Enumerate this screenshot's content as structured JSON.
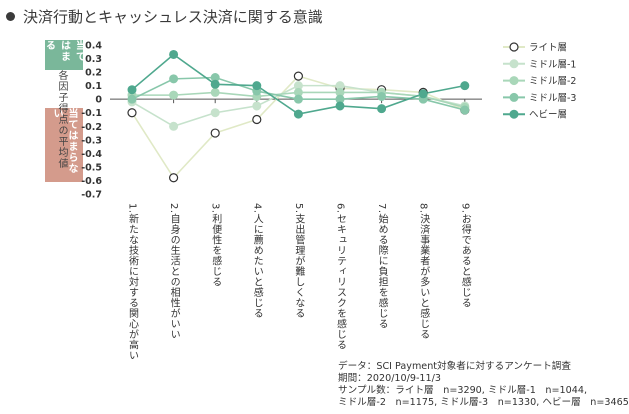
{
  "header": {
    "title": "決済行動とキャッシュレス決済に関する意識"
  },
  "y_axis_label": "各因子得点の平均値",
  "tags": {
    "agree": "当てはまる",
    "disagree": "当てはまらない"
  },
  "footer": {
    "line1": "データ：SCI Payment対象者に対するアンケート調査",
    "line2": "期間：2020/10/9-11/3",
    "line3": "サンプル数：ライト層　n=3290, ミドル層-1　n=1044,",
    "line4": "ミドル層-2　n=1175, ミドル層-3　n=1330, ヘビー層　n=3465"
  },
  "chart_data": {
    "type": "line",
    "ylim": [
      -0.7,
      0.4
    ],
    "y_ticks": [
      "0.4",
      "0.3",
      "0.2",
      "0.1",
      "0",
      "-0.1",
      "-0.2",
      "-0.3",
      "-0.4",
      "-0.5",
      "-0.6",
      "-0.7"
    ],
    "categories": [
      "1.新たな技術に対する関心が高い",
      "2.自身の生活との相性がいい",
      "3.利便性を感じる",
      "4.人に薦めたいと感じる",
      "5.支出管理が難しくなる",
      "6.セキュリティリスクを感じる",
      "7.始める際に負担を感じる",
      "8.決済事業者が多いと感じる",
      "9.お得であると感じる"
    ],
    "series": [
      {
        "name": "ライト層",
        "color": "#e0e9c6",
        "marker": "#ffffff",
        "values": [
          -0.1,
          -0.58,
          -0.25,
          -0.15,
          0.17,
          0.08,
          0.07,
          0.05,
          -0.08
        ]
      },
      {
        "name": "ミドル層-1",
        "color": "#c6e2cc",
        "marker": "#c6e2cc",
        "values": [
          -0.02,
          -0.2,
          -0.1,
          -0.05,
          0.1,
          0.1,
          0.05,
          0.02,
          -0.05
        ]
      },
      {
        "name": "ミドル層-2",
        "color": "#a9d7b9",
        "marker": "#a9d7b9",
        "values": [
          0.03,
          0.03,
          0.05,
          0.02,
          0.05,
          0.05,
          0.05,
          0.02,
          -0.06
        ]
      },
      {
        "name": "ミドル層-3",
        "color": "#88c7aa",
        "marker": "#88c7aa",
        "values": [
          0.0,
          0.15,
          0.16,
          0.06,
          0.0,
          0.0,
          0.02,
          0.0,
          -0.08
        ]
      },
      {
        "name": "ヘビー層",
        "color": "#4fa88e",
        "marker": "#4fa88e",
        "values": [
          0.07,
          0.33,
          0.11,
          0.1,
          -0.11,
          -0.05,
          -0.07,
          0.04,
          0.1
        ]
      }
    ]
  }
}
